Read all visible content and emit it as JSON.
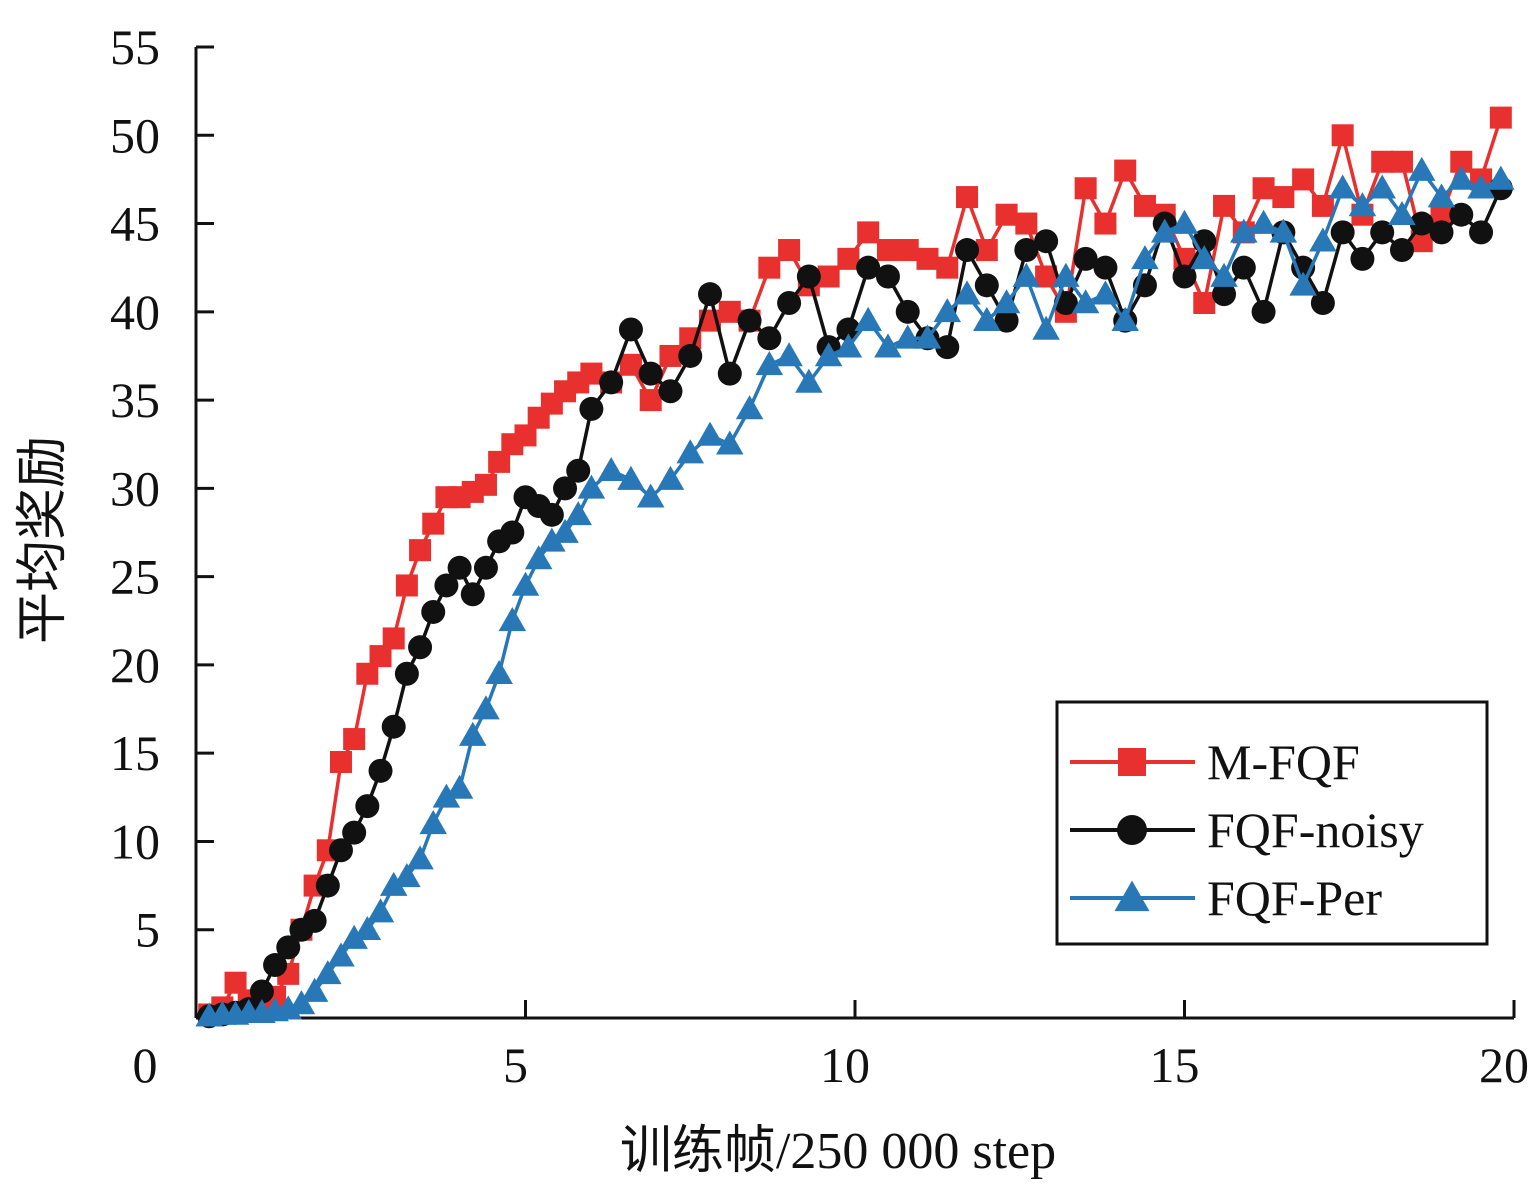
{
  "chart_data": {
    "type": "line",
    "xlabel": "训练帧/250 000 step",
    "ylabel": "平均奖励",
    "xlim": [
      0,
      20
    ],
    "ylim": [
      0,
      55
    ],
    "x_ticks": [
      "0",
      "5",
      "10",
      "15",
      "20"
    ],
    "y_ticks": [
      "5",
      "10",
      "15",
      "20",
      "25",
      "30",
      "35",
      "40",
      "45",
      "50",
      "55"
    ],
    "grid": false,
    "legend_position": "bottom-right",
    "series": [
      {
        "name": "M-FQF",
        "color": "#e8312f",
        "marker": "square",
        "x": [
          0.2,
          0.4,
          0.6,
          0.8,
          1.0,
          1.2,
          1.4,
          1.6,
          1.8,
          2.0,
          2.2,
          2.4,
          2.6,
          2.8,
          3.0,
          3.2,
          3.4,
          3.6,
          3.8,
          4.0,
          4.2,
          4.4,
          4.6,
          4.8,
          5.0,
          5.2,
          5.4,
          5.6,
          5.8,
          6.0,
          6.3,
          6.6,
          6.9,
          7.2,
          7.5,
          7.8,
          8.1,
          8.4,
          8.7,
          9.0,
          9.3,
          9.6,
          9.9,
          10.2,
          10.5,
          10.8,
          11.1,
          11.4,
          11.7,
          12.0,
          12.3,
          12.6,
          12.9,
          13.2,
          13.5,
          13.8,
          14.1,
          14.4,
          14.7,
          15.0,
          15.3,
          15.6,
          15.9,
          16.2,
          16.5,
          16.8,
          17.1,
          17.4,
          17.7,
          18.0,
          18.3,
          18.6,
          18.9,
          19.2,
          19.5,
          19.8
        ],
        "y": [
          0.2,
          0.6,
          2.0,
          1.0,
          0.8,
          1.2,
          2.5,
          5.0,
          7.5,
          9.5,
          14.5,
          15.8,
          19.5,
          20.5,
          21.5,
          24.5,
          26.5,
          28.0,
          29.5,
          29.5,
          29.8,
          30.2,
          31.5,
          32.5,
          33.0,
          34.0,
          34.8,
          35.5,
          36.0,
          36.5,
          36.0,
          37.0,
          35.0,
          37.5,
          38.5,
          39.5,
          40.0,
          39.5,
          42.5,
          43.5,
          41.5,
          42.0,
          43.0,
          44.5,
          43.5,
          43.5,
          43.0,
          42.5,
          46.5,
          43.5,
          45.5,
          45.0,
          42.0,
          40.0,
          47.0,
          45.0,
          48.0,
          46.0,
          45.5,
          43.0,
          40.5,
          46.0,
          44.5,
          47.0,
          46.5,
          47.5,
          46.0,
          50.0,
          45.5,
          48.5,
          48.5,
          44.0,
          45.5,
          48.5,
          47.5,
          51.0
        ]
      },
      {
        "name": "FQF-noisy",
        "color": "#111111",
        "marker": "circle",
        "x": [
          0.2,
          0.4,
          0.6,
          0.8,
          1.0,
          1.2,
          1.4,
          1.6,
          1.8,
          2.0,
          2.2,
          2.4,
          2.6,
          2.8,
          3.0,
          3.2,
          3.4,
          3.6,
          3.8,
          4.0,
          4.2,
          4.4,
          4.6,
          4.8,
          5.0,
          5.2,
          5.4,
          5.6,
          5.8,
          6.0,
          6.3,
          6.6,
          6.9,
          7.2,
          7.5,
          7.8,
          8.1,
          8.4,
          8.7,
          9.0,
          9.3,
          9.6,
          9.9,
          10.2,
          10.5,
          10.8,
          11.1,
          11.4,
          11.7,
          12.0,
          12.3,
          12.6,
          12.9,
          13.2,
          13.5,
          13.8,
          14.1,
          14.4,
          14.7,
          15.0,
          15.3,
          15.6,
          15.9,
          16.2,
          16.5,
          16.8,
          17.1,
          17.4,
          17.7,
          18.0,
          18.3,
          18.6,
          18.9,
          19.2,
          19.5,
          19.8
        ],
        "y": [
          0.1,
          0.2,
          0.3,
          0.5,
          1.5,
          3.0,
          4.0,
          5.0,
          5.5,
          7.5,
          9.5,
          10.5,
          12.0,
          14.0,
          16.5,
          19.5,
          21.0,
          23.0,
          24.5,
          25.5,
          24.0,
          25.5,
          27.0,
          27.5,
          29.5,
          29.0,
          28.5,
          30.0,
          31.0,
          34.5,
          36.0,
          39.0,
          36.5,
          35.5,
          37.5,
          41.0,
          36.5,
          39.5,
          38.5,
          40.5,
          42.0,
          38.0,
          39.0,
          42.5,
          42.0,
          40.0,
          38.5,
          38.0,
          43.5,
          41.5,
          39.5,
          43.5,
          44.0,
          40.5,
          43.0,
          42.5,
          39.5,
          41.5,
          45.0,
          42.0,
          44.0,
          41.0,
          42.5,
          40.0,
          44.5,
          42.5,
          40.5,
          44.5,
          43.0,
          44.5,
          43.5,
          45.0,
          44.5,
          45.5,
          44.5,
          47.0
        ]
      },
      {
        "name": "FQF-Per",
        "color": "#2878b8",
        "marker": "triangle",
        "x": [
          0.2,
          0.4,
          0.6,
          0.8,
          1.0,
          1.2,
          1.4,
          1.6,
          1.8,
          2.0,
          2.2,
          2.4,
          2.6,
          2.8,
          3.0,
          3.2,
          3.4,
          3.6,
          3.8,
          4.0,
          4.2,
          4.4,
          4.6,
          4.8,
          5.0,
          5.2,
          5.4,
          5.6,
          5.8,
          6.0,
          6.3,
          6.6,
          6.9,
          7.2,
          7.5,
          7.8,
          8.1,
          8.4,
          8.7,
          9.0,
          9.3,
          9.6,
          9.9,
          10.2,
          10.5,
          10.8,
          11.1,
          11.4,
          11.7,
          12.0,
          12.3,
          12.6,
          12.9,
          13.2,
          13.5,
          13.8,
          14.1,
          14.4,
          14.7,
          15.0,
          15.3,
          15.6,
          15.9,
          16.2,
          16.5,
          16.8,
          17.1,
          17.4,
          17.7,
          18.0,
          18.3,
          18.6,
          18.9,
          19.2,
          19.5,
          19.8
        ],
        "y": [
          0.1,
          0.2,
          0.2,
          0.3,
          0.3,
          0.4,
          0.5,
          0.8,
          1.5,
          2.5,
          3.5,
          4.5,
          5.0,
          6.0,
          7.5,
          8.0,
          9.0,
          11.0,
          12.5,
          13.0,
          16.0,
          17.5,
          19.5,
          22.5,
          24.5,
          26.0,
          27.0,
          27.5,
          28.5,
          30.0,
          31.0,
          30.5,
          29.5,
          30.5,
          32.0,
          33.0,
          32.5,
          34.5,
          37.0,
          37.5,
          36.0,
          37.5,
          38.0,
          39.5,
          38.0,
          38.5,
          38.5,
          40.0,
          41.0,
          39.5,
          40.5,
          42.0,
          39.0,
          42.0,
          40.5,
          41.0,
          39.5,
          43.0,
          44.5,
          45.0,
          43.0,
          42.0,
          44.5,
          45.0,
          44.5,
          41.5,
          44.0,
          47.0,
          46.0,
          47.0,
          45.5,
          48.0,
          46.5,
          47.5,
          47.0,
          47.5
        ]
      }
    ]
  }
}
